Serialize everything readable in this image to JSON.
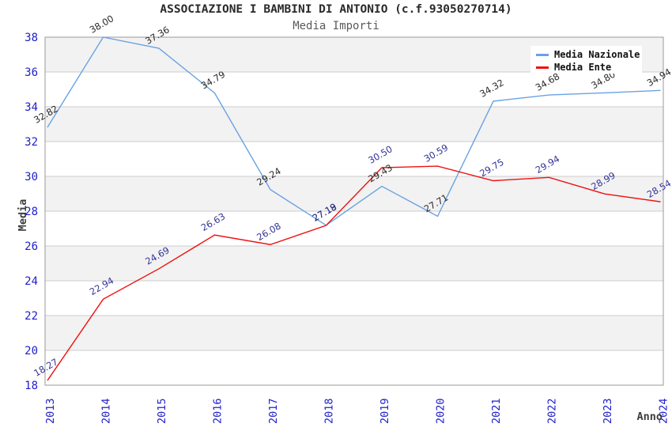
{
  "header": {
    "title": "ASSOCIAZIONE I BAMBINI DI ANTONIO (c.f.93050270714)",
    "subtitle": "Media Importi"
  },
  "axes": {
    "y_label": "Media",
    "x_label": "Anno",
    "y_ticks": [
      38,
      36,
      34,
      32,
      30,
      28,
      26,
      24,
      22,
      20,
      18
    ],
    "x_ticks": [
      "2013",
      "2014",
      "2015",
      "2016",
      "2017",
      "2018",
      "2019",
      "2020",
      "2021",
      "2022",
      "2023",
      "2024"
    ]
  },
  "legend": {
    "position": "top-right",
    "items": [
      {
        "label": "Media Nazionale",
        "color": "#6aa2e2"
      },
      {
        "label": "Media Ente",
        "color": "#ee1111"
      }
    ]
  },
  "chart_data": {
    "type": "line",
    "title": "Media Importi",
    "x": [
      2013,
      2014,
      2015,
      2016,
      2017,
      2018,
      2019,
      2020,
      2021,
      2022,
      2023,
      2024
    ],
    "xlabel": "Anno",
    "ylabel": "Media",
    "ylim": [
      18,
      38
    ],
    "grid": true,
    "legend_position": "top-right",
    "value_label_decimals": 2,
    "series": [
      {
        "name": "Media Nazionale",
        "color": "#6aa2e2",
        "label_color": "#2a2a2a",
        "values": [
          32.82,
          38.0,
          37.36,
          34.79,
          29.24,
          27.19,
          29.43,
          27.71,
          34.32,
          34.68,
          34.8,
          34.94
        ]
      },
      {
        "name": "Media Ente",
        "color": "#ee1111",
        "label_color": "#333399",
        "values": [
          18.27,
          22.94,
          24.69,
          26.63,
          26.08,
          27.18,
          30.5,
          30.59,
          29.75,
          29.94,
          28.99,
          28.54
        ]
      }
    ]
  },
  "colors": {
    "background": "#ffffff",
    "plot_band": "#f2f2f2",
    "grid": "#cccccc",
    "plot_border": "#9a9a9a",
    "tick_label": "#2020cc",
    "series_nazionale": "#6aa2e2",
    "series_ente": "#ee1111",
    "value_label_nazionale": "#2a2a2a",
    "value_label_ente": "#333399"
  }
}
